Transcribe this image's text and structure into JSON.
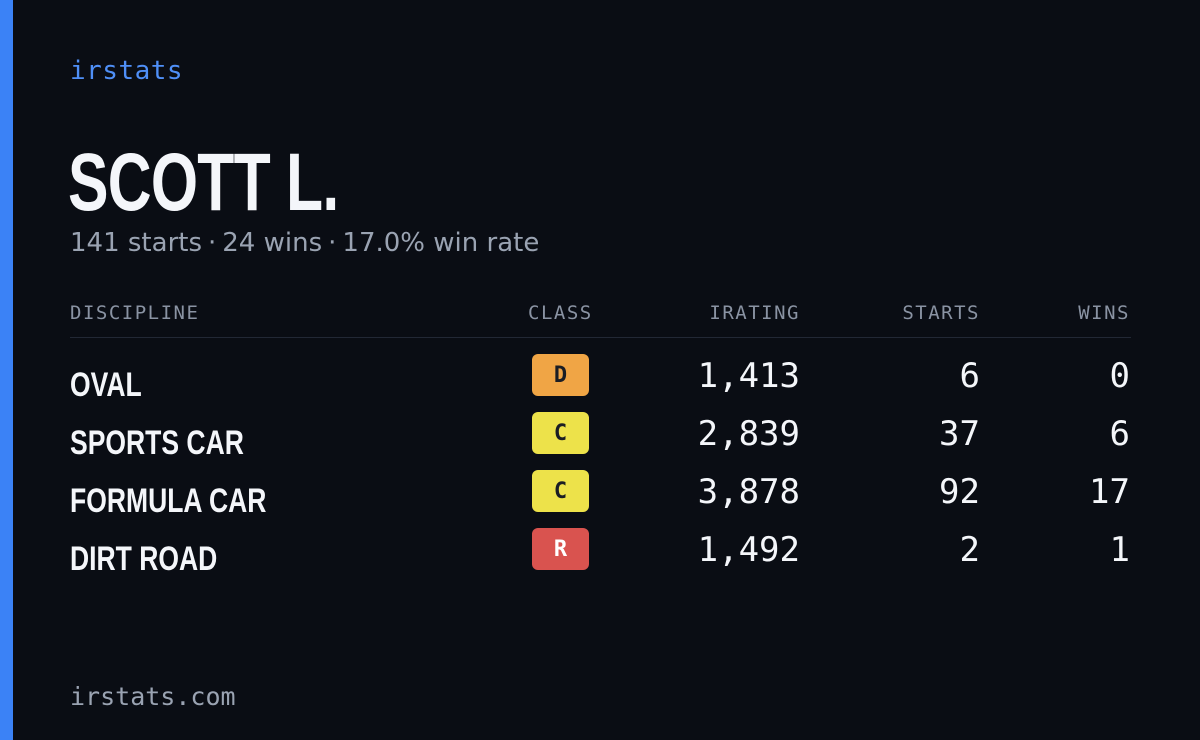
{
  "brand": "irstats",
  "driver": {
    "name": "SCOTT L.",
    "starts_text": "141 starts",
    "wins_text": "24 wins",
    "win_rate_text": "17.0% win rate",
    "separator": "·"
  },
  "table": {
    "headers": {
      "discipline": "DISCIPLINE",
      "class": "CLASS",
      "irating": "IRATING",
      "starts": "STARTS",
      "wins": "WINS"
    },
    "rows": [
      {
        "discipline": "OVAL",
        "class": "D",
        "class_color": "#f0a545",
        "irating": "1,413",
        "starts": "6",
        "wins": "0"
      },
      {
        "discipline": "SPORTS CAR",
        "class": "C",
        "class_color": "#ede24a",
        "irating": "2,839",
        "starts": "37",
        "wins": "6"
      },
      {
        "discipline": "FORMULA CAR",
        "class": "C",
        "class_color": "#ede24a",
        "irating": "3,878",
        "starts": "92",
        "wins": "17"
      },
      {
        "discipline": "DIRT ROAD",
        "class": "R",
        "class_color": "#d9534f",
        "irating": "1,492",
        "starts": "2",
        "wins": "1"
      }
    ]
  },
  "footer": "irstats.com",
  "colors": {
    "background": "#0a0d14",
    "accent": "#3b82f6",
    "brand_text": "#4f8ff7",
    "muted_text": "#9aa3b2"
  }
}
